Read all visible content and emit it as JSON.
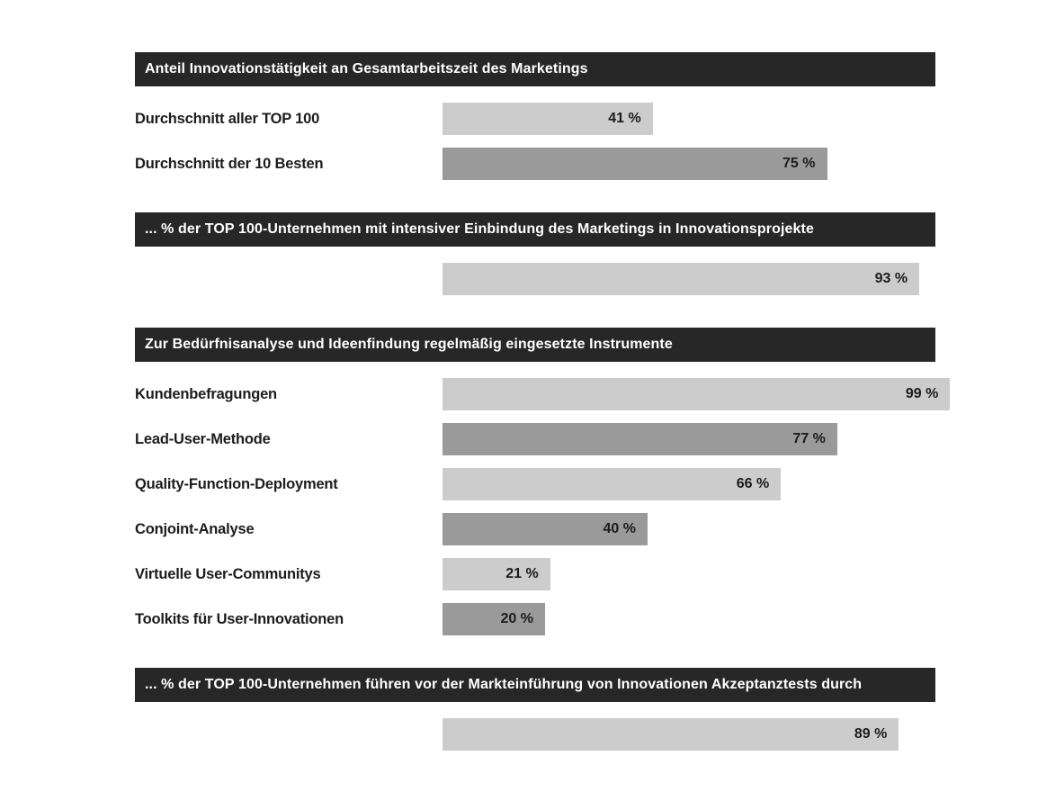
{
  "page": {
    "background": "#ffffff"
  },
  "colors": {
    "header_bg": "#272727",
    "header_text": "#ffffff",
    "bar_light": "#cccccc",
    "bar_dark": "#9a9a9a",
    "label_text": "#1c1c1c",
    "value_text": "#1c1c1c"
  },
  "chart_data": [
    {
      "type": "bar",
      "orientation": "horizontal",
      "title": "Anteil Innovationstätigkeit an Gesamtarbeitszeit des Marketings",
      "categories": [
        "Durchschnitt aller TOP 100",
        "Durchschnitt der 10 Besten"
      ],
      "values": [
        41,
        75
      ],
      "unit": "%",
      "xlim": [
        0,
        100
      ],
      "grid": false,
      "value_labels": "inside-right"
    },
    {
      "type": "bar",
      "orientation": "horizontal",
      "title": "... % der TOP 100-Unternehmen mit intensiver Einbindung des Marketings in Innovationsprojekte",
      "categories": [
        ""
      ],
      "values": [
        93
      ],
      "unit": "%",
      "xlim": [
        0,
        100
      ],
      "grid": false,
      "value_labels": "inside-right"
    },
    {
      "type": "bar",
      "orientation": "horizontal",
      "title": "Zur Bedürfnisanalyse und Ideenfindung regelmäßig eingesetzte Instrumente",
      "categories": [
        "Kundenbefragungen",
        "Lead-User-Methode",
        "Quality-Function-Deployment",
        "Conjoint-Analyse",
        "Virtuelle User-Communitys",
        "Toolkits für User-Innovationen"
      ],
      "values": [
        99,
        77,
        66,
        40,
        21,
        20
      ],
      "unit": "%",
      "xlim": [
        0,
        100
      ],
      "grid": false,
      "value_labels": "inside-right"
    },
    {
      "type": "bar",
      "orientation": "horizontal",
      "title": "... % der TOP 100-Unternehmen führen vor der Markteinführung von Innovationen Akzeptanztests durch",
      "categories": [
        ""
      ],
      "values": [
        89
      ],
      "unit": "%",
      "xlim": [
        0,
        100
      ],
      "grid": false,
      "value_labels": "inside-right"
    }
  ]
}
